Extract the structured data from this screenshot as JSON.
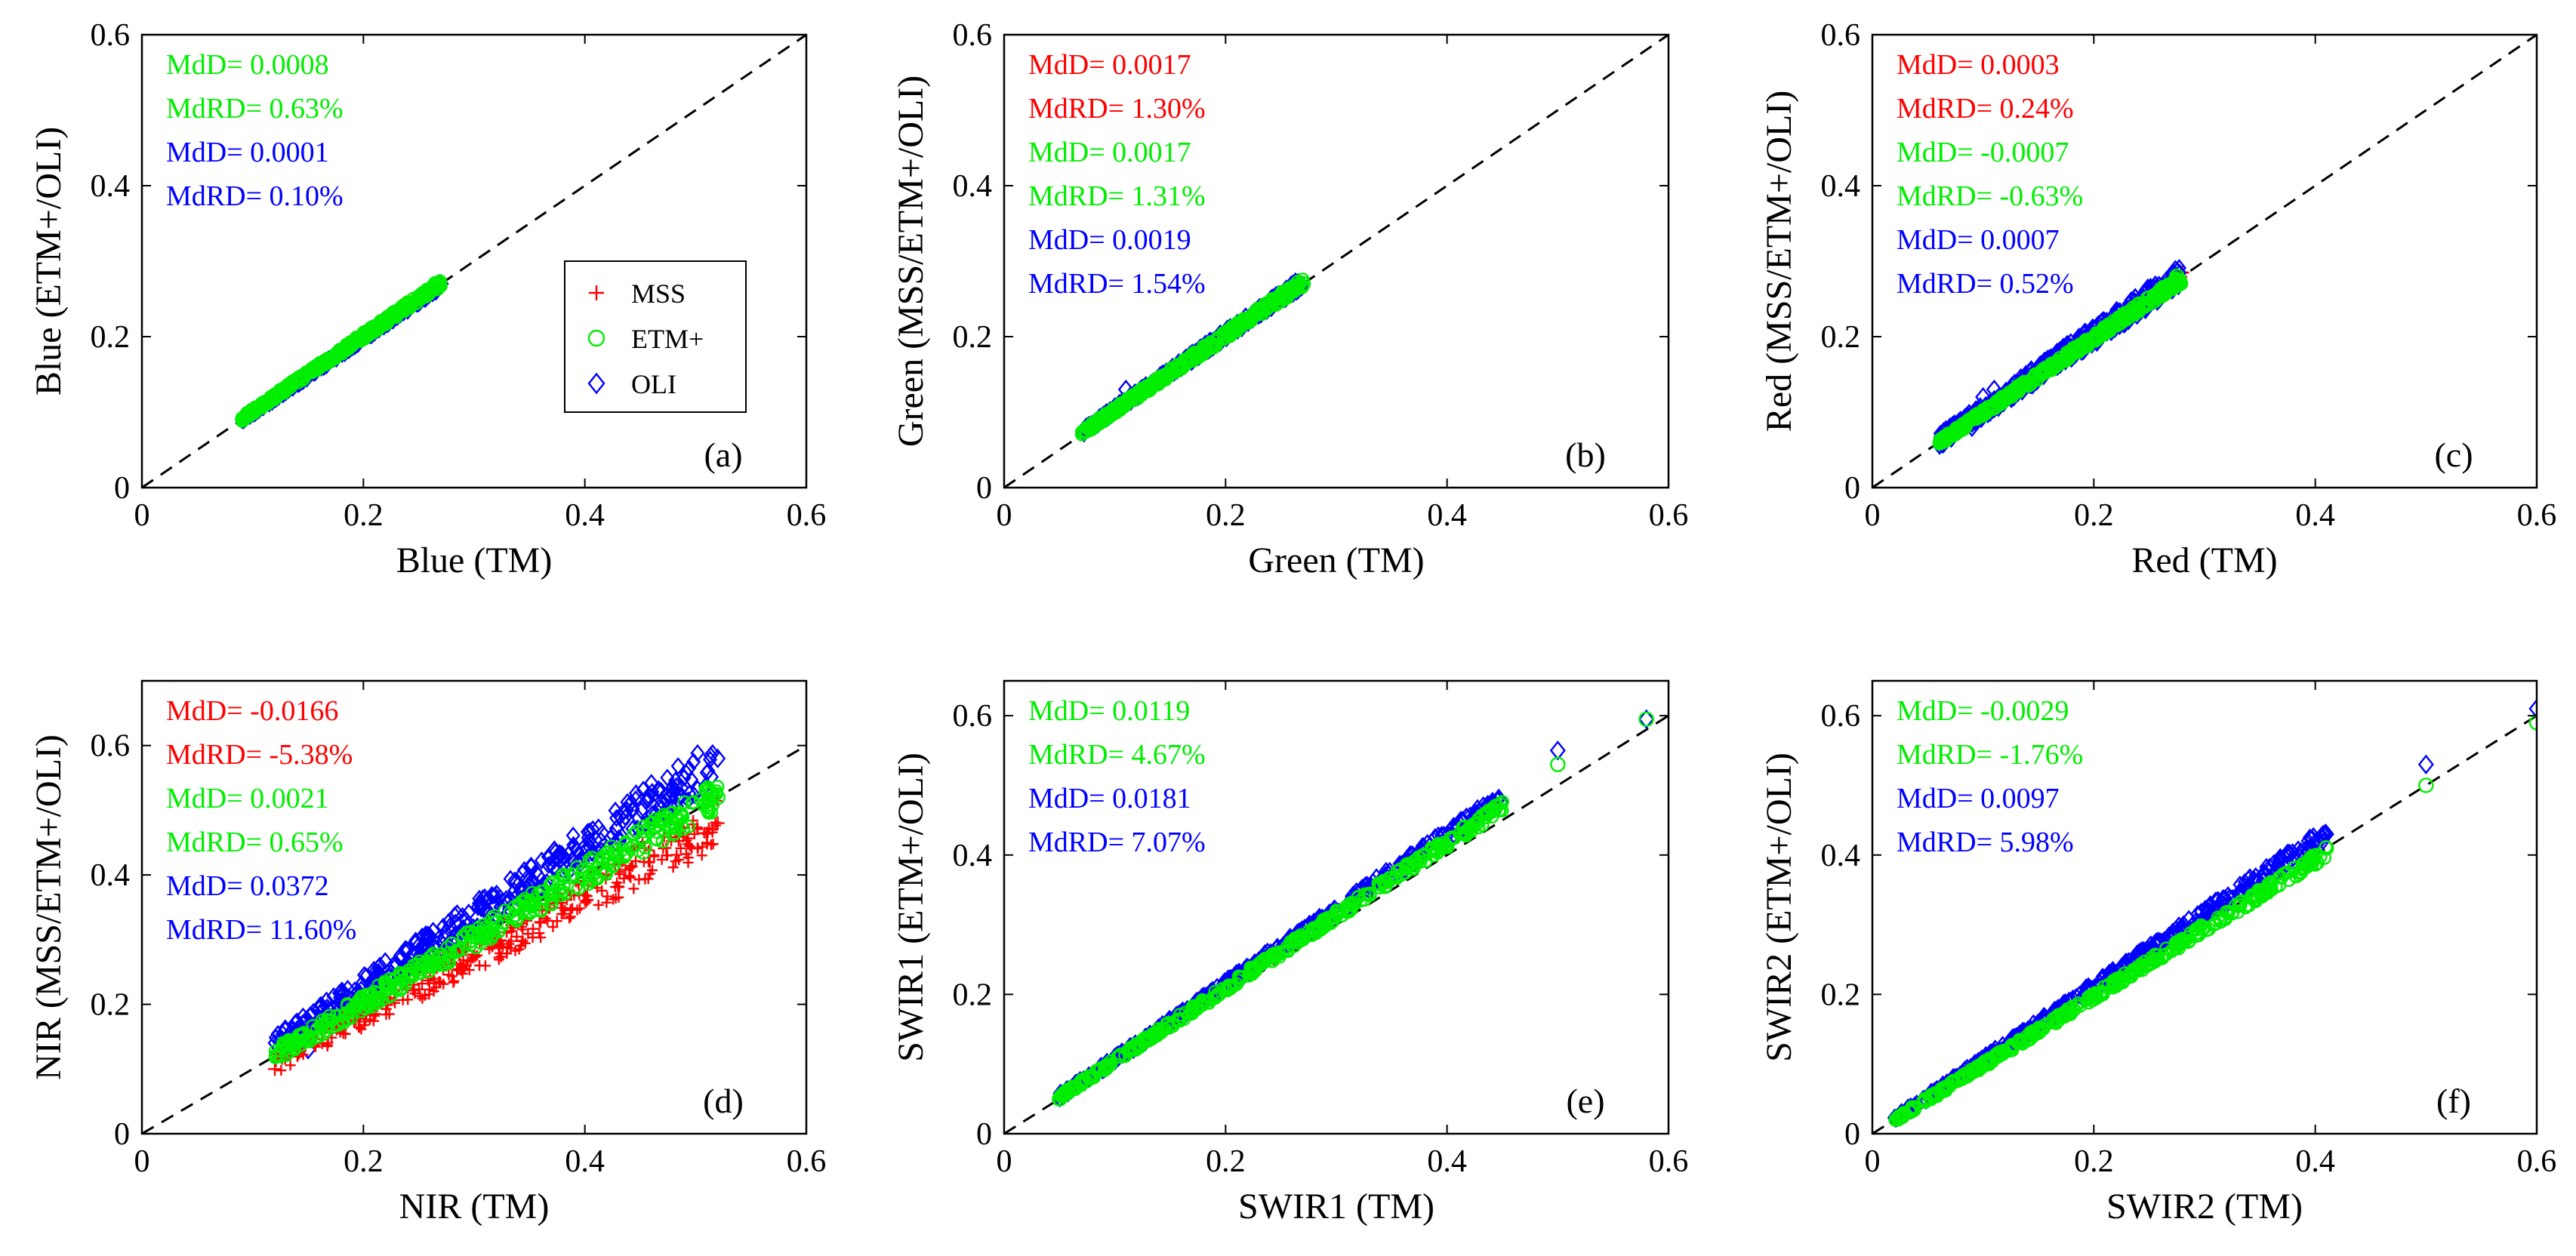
{
  "colors": {
    "MSS": "#ff0000",
    "ETM+": "#00ee00",
    "OLI": "#0000ff",
    "axis": "#000000",
    "diag": "#000000"
  },
  "legend": {
    "entries": [
      {
        "label": "MSS",
        "marker": "plus-icon",
        "sensor": "MSS"
      },
      {
        "label": "ETM+",
        "marker": "circle-icon",
        "sensor": "ETM+"
      },
      {
        "label": "OLI",
        "marker": "diamond-icon",
        "sensor": "OLI"
      }
    ]
  },
  "chart_data": [
    {
      "id": "a",
      "type": "scatter",
      "panel_label": "(a)",
      "xlabel": "Blue (TM)",
      "ylabel": "Blue (ETM+/OLI)",
      "xlim": [
        0,
        0.6
      ],
      "ylim": [
        0,
        0.6
      ],
      "xticks": [
        "0",
        "0.2",
        "0.4",
        "0.6"
      ],
      "yticks": [
        "0",
        "0.2",
        "0.4",
        "0.6"
      ],
      "stats": [
        {
          "text": "MdD= 0.0008",
          "sensor": "ETM+"
        },
        {
          "text": "MdRD= 0.63%",
          "sensor": "ETM+"
        },
        {
          "text": "MdD= 0.0001",
          "sensor": "OLI"
        },
        {
          "text": "MdRD= 0.10%",
          "sensor": "OLI"
        }
      ],
      "series": [
        {
          "name": "OLI",
          "x_range": [
            0.09,
            0.27
          ],
          "slope": 0.995,
          "offset": 0.0,
          "spread": 0.004,
          "outliers": [
            [
              0.27,
              0.27
            ]
          ]
        },
        {
          "name": "ETM+",
          "x_range": [
            0.09,
            0.27
          ],
          "slope": 1.0,
          "offset": 0.001,
          "spread": 0.004,
          "outliers": [
            [
              0.265,
              0.27
            ]
          ]
        }
      ],
      "has_legend": true
    },
    {
      "id": "b",
      "type": "scatter",
      "panel_label": "(b)",
      "xlabel": "Green (TM)",
      "ylabel": "Green (MSS/ETM+/OLI)",
      "xlim": [
        0,
        0.6
      ],
      "ylim": [
        0,
        0.6
      ],
      "xticks": [
        "0",
        "0.2",
        "0.4",
        "0.6"
      ],
      "yticks": [
        "0",
        "0.2",
        "0.4",
        "0.6"
      ],
      "stats": [
        {
          "text": "MdD= 0.0017",
          "sensor": "MSS"
        },
        {
          "text": "MdRD= 1.30%",
          "sensor": "MSS"
        },
        {
          "text": "MdD= 0.0017",
          "sensor": "ETM+"
        },
        {
          "text": "MdRD= 1.31%",
          "sensor": "ETM+"
        },
        {
          "text": "MdD= 0.0019",
          "sensor": "OLI"
        },
        {
          "text": "MdRD= 1.54%",
          "sensor": "OLI"
        }
      ],
      "series": [
        {
          "name": "MSS",
          "x_range": [
            0.07,
            0.27
          ],
          "slope": 1.0,
          "offset": 0.002,
          "spread": 0.004,
          "outliers": [
            [
              0.26,
              0.27
            ]
          ]
        },
        {
          "name": "OLI",
          "x_range": [
            0.07,
            0.27
          ],
          "slope": 1.0,
          "offset": 0.003,
          "spread": 0.006,
          "outliers": [
            [
              0.11,
              0.13
            ],
            [
              0.265,
              0.265
            ]
          ]
        },
        {
          "name": "ETM+",
          "x_range": [
            0.07,
            0.27
          ],
          "slope": 1.0,
          "offset": 0.002,
          "spread": 0.005,
          "outliers": [
            [
              0.27,
              0.27
            ]
          ]
        }
      ],
      "has_legend": false
    },
    {
      "id": "c",
      "type": "scatter",
      "panel_label": "(c)",
      "xlabel": "Red (TM)",
      "ylabel": "Red (MSS/ETM+/OLI)",
      "xlim": [
        0,
        0.6
      ],
      "ylim": [
        0,
        0.6
      ],
      "xticks": [
        "0",
        "0.2",
        "0.4",
        "0.6"
      ],
      "yticks": [
        "0",
        "0.2",
        "0.4",
        "0.6"
      ],
      "stats": [
        {
          "text": "MdD= 0.0003",
          "sensor": "MSS"
        },
        {
          "text": "MdRD= 0.24%",
          "sensor": "MSS"
        },
        {
          "text": "MdD= -0.0007",
          "sensor": "ETM+"
        },
        {
          "text": "MdRD= -0.63%",
          "sensor": "ETM+"
        },
        {
          "text": "MdD= 0.0007",
          "sensor": "OLI"
        },
        {
          "text": "MdRD= 0.52%",
          "sensor": "OLI"
        }
      ],
      "series": [
        {
          "name": "MSS",
          "x_range": [
            0.06,
            0.28
          ],
          "slope": 1.0,
          "offset": 0.0,
          "spread": 0.004,
          "outliers": [
            [
              0.28,
              0.285
            ]
          ]
        },
        {
          "name": "OLI",
          "x_range": [
            0.06,
            0.28
          ],
          "slope": 1.0,
          "offset": 0.002,
          "spread": 0.012,
          "outliers": [
            [
              0.1,
              0.12
            ],
            [
              0.11,
              0.13
            ],
            [
              0.09,
              0.08
            ]
          ]
        },
        {
          "name": "ETM+",
          "x_range": [
            0.06,
            0.28
          ],
          "slope": 0.99,
          "offset": 0.0,
          "spread": 0.005,
          "outliers": [
            [
              0.275,
              0.28
            ]
          ]
        }
      ],
      "has_legend": false
    },
    {
      "id": "d",
      "type": "scatter",
      "panel_label": "(d)",
      "xlabel": "NIR (TM)",
      "ylabel": "NIR (MSS/ETM+/OLI)",
      "xlim": [
        0,
        0.6
      ],
      "ylim": [
        0,
        0.7
      ],
      "xticks": [
        "0",
        "0.2",
        "0.4",
        "0.6"
      ],
      "yticks": [
        "0",
        "0.2",
        "0.4",
        "0.6"
      ],
      "stats": [
        {
          "text": "MdD= -0.0166",
          "sensor": "MSS"
        },
        {
          "text": "MdRD= -5.38%",
          "sensor": "MSS"
        },
        {
          "text": "MdD= 0.0021",
          "sensor": "ETM+"
        },
        {
          "text": "MdRD= 0.65%",
          "sensor": "ETM+"
        },
        {
          "text": "MdD= 0.0372",
          "sensor": "OLI"
        },
        {
          "text": "MdRD= 11.60%",
          "sensor": "OLI"
        }
      ],
      "series": [
        {
          "name": "OLI",
          "x_range": [
            0.12,
            0.52
          ],
          "slope": 1.1,
          "offset": 0.005,
          "spread": 0.018,
          "outliers": [
            [
              0.13,
              0.14
            ],
            [
              0.15,
              0.13
            ],
            [
              0.52,
              0.58
            ],
            [
              0.14,
              0.16
            ]
          ]
        },
        {
          "name": "MSS",
          "x_range": [
            0.12,
            0.52
          ],
          "slope": 0.92,
          "offset": 0.0,
          "spread": 0.02,
          "outliers": [
            [
              0.52,
              0.48
            ],
            [
              0.12,
              0.1
            ]
          ]
        },
        {
          "name": "ETM+",
          "x_range": [
            0.12,
            0.52
          ],
          "slope": 1.0,
          "offset": 0.002,
          "spread": 0.012,
          "outliers": [
            [
              0.52,
              0.52
            ]
          ]
        }
      ],
      "has_legend": false
    },
    {
      "id": "e",
      "type": "scatter",
      "panel_label": "(e)",
      "xlabel": "SWIR1 (TM)",
      "ylabel": "SWIR1 (ETM+/OLI)",
      "xlim": [
        0,
        0.6
      ],
      "ylim": [
        0,
        0.65
      ],
      "xticks": [
        "0",
        "0.2",
        "0.4",
        "0.6"
      ],
      "yticks": [
        "0",
        "0.2",
        "0.4",
        "0.6"
      ],
      "stats": [
        {
          "text": "MdD= 0.0119",
          "sensor": "ETM+"
        },
        {
          "text": "MdRD= 4.67%",
          "sensor": "ETM+"
        },
        {
          "text": "MdD= 0.0181",
          "sensor": "OLI"
        },
        {
          "text": "MdRD= 7.07%",
          "sensor": "OLI"
        }
      ],
      "series": [
        {
          "name": "OLI",
          "x_range": [
            0.05,
            0.45
          ],
          "slope": 1.07,
          "offset": 0.0,
          "spread": 0.006,
          "outliers": [
            [
              0.5,
              0.55
            ],
            [
              0.58,
              0.595
            ]
          ]
        },
        {
          "name": "ETM+",
          "x_range": [
            0.05,
            0.45
          ],
          "slope": 1.045,
          "offset": 0.0,
          "spread": 0.005,
          "outliers": [
            [
              0.5,
              0.53
            ],
            [
              0.58,
              0.595
            ],
            [
              0.05,
              0.05
            ]
          ]
        }
      ],
      "has_legend": false
    },
    {
      "id": "f",
      "type": "scatter",
      "panel_label": "(f)",
      "xlabel": "SWIR2 (TM)",
      "ylabel": "SWIR2 (ETM+/OLI)",
      "xlim": [
        0,
        0.6
      ],
      "ylim": [
        0,
        0.65
      ],
      "xticks": [
        "0",
        "0.2",
        "0.4",
        "0.6"
      ],
      "yticks": [
        "0",
        "0.2",
        "0.4",
        "0.6"
      ],
      "stats": [
        {
          "text": "MdD= -0.0029",
          "sensor": "ETM+"
        },
        {
          "text": "MdRD= -1.76%",
          "sensor": "ETM+"
        },
        {
          "text": "MdD= 0.0097",
          "sensor": "OLI"
        },
        {
          "text": "MdRD= 5.98%",
          "sensor": "OLI"
        }
      ],
      "series": [
        {
          "name": "OLI",
          "x_range": [
            0.02,
            0.41
          ],
          "slope": 1.055,
          "offset": 0.0,
          "spread": 0.006,
          "outliers": [
            [
              0.5,
              0.53
            ],
            [
              0.6,
              0.61
            ],
            [
              0.41,
              0.43
            ]
          ]
        },
        {
          "name": "ETM+",
          "x_range": [
            0.02,
            0.41
          ],
          "slope": 0.985,
          "offset": 0.0,
          "spread": 0.005,
          "outliers": [
            [
              0.5,
              0.5
            ],
            [
              0.6,
              0.59
            ],
            [
              0.41,
              0.41
            ]
          ]
        }
      ],
      "has_legend": false
    }
  ]
}
